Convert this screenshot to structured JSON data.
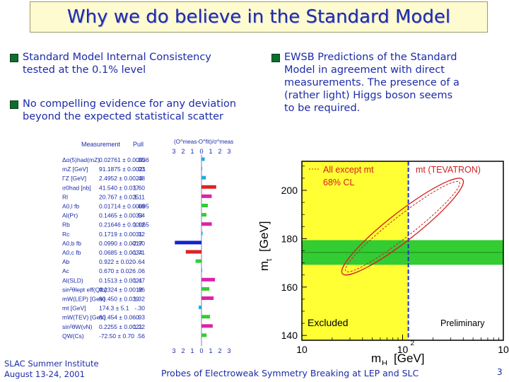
{
  "slide": {
    "title": "Why we do believe in the Standard Model",
    "left_bullets": [
      {
        "line1": "Standard Model Internal Consistency",
        "line2": "tested at the 0.1% level"
      },
      {
        "line1": "No compelling evidence for any deviation",
        "line2": "beyond the expected statistical scatter"
      }
    ],
    "right_bullet": {
      "lines": [
        "EWSB Predictions of the Standard",
        "Model in agreement with direct",
        "measurements. The presence of a",
        "(rather light) Higgs boson seems",
        "to be required."
      ]
    },
    "footer": {
      "left_line1": "SLAC Summer Institute",
      "left_line2": "August 13-24, 2001",
      "center": "Probes of Electroweak Symmetry Breaking at LEP and SLC",
      "page": "3"
    },
    "colors": {
      "title_bg": "#fffbd0",
      "text": "#1c2ba8",
      "bullet": "#0d6e2e"
    }
  },
  "pull_table": {
    "header_measurement": "Measurement",
    "header_pull": "Pull",
    "header_scale": "(O^meas-O^fit)/σ^meas",
    "scale_ticks": [
      "3",
      "2",
      "1",
      "0",
      "1",
      "2",
      "3"
    ],
    "rows": [
      {
        "name": "Δα(5)had(mZ)",
        "value": "0.02761 ± 0.00036",
        "pull": ".35",
        "pull_value": 0.35
      },
      {
        "name": "mZ [GeV]",
        "value": "91.1875 ± 0.0021",
        "pull": ".03",
        "pull_value": 0.03
      },
      {
        "name": "ΓZ [GeV]",
        "value": "2.4952 ± 0.0023",
        "pull": ".48",
        "pull_value": 0.48
      },
      {
        "name": "σ0had [nb]",
        "value": "41.540 ± 0.037",
        "pull": "1.60",
        "pull_value": 1.6
      },
      {
        "name": "Rl",
        "value": "20.767 ± 0.025",
        "pull": "1.11",
        "pull_value": 1.11
      },
      {
        "name": "A0,l fb",
        "value": "0.01714 ± 0.00095",
        "pull": ".69",
        "pull_value": 0.69
      },
      {
        "name": "Al(Pτ)",
        "value": "0.1465 ± 0.0033",
        "pull": ".54",
        "pull_value": 0.54
      },
      {
        "name": "Rb",
        "value": "0.21646 ± 0.00065",
        "pull": "1.12",
        "pull_value": 1.12
      },
      {
        "name": "Rc",
        "value": "0.1719 ± 0.0031",
        "pull": ".12",
        "pull_value": 0.12
      },
      {
        "name": "A0,b fb",
        "value": "0.0990 ± 0.0017",
        "pull": "-2.90",
        "pull_value": -2.9
      },
      {
        "name": "A0,c fb",
        "value": "0.0685 ± 0.0034",
        "pull": "-1.71",
        "pull_value": -1.71
      },
      {
        "name": "Ab",
        "value": "0.922 ± 0.020",
        "pull": "-.64",
        "pull_value": -0.64
      },
      {
        "name": "Ac",
        "value": "0.670 ± 0.026",
        "pull": ".06",
        "pull_value": 0.06
      },
      {
        "name": "Al(SLD)",
        "value": "0.1513 ± 0.0021",
        "pull": "1.47",
        "pull_value": 1.47
      },
      {
        "name": "sin²θlept eff(Qfb)",
        "value": "0.2324 ± 0.0012",
        "pull": ".86",
        "pull_value": 0.86
      },
      {
        "name": "mW(LEP) [GeV]",
        "value": "80.450 ± 0.039",
        "pull": "1.32",
        "pull_value": 1.32
      },
      {
        "name": "mt [GeV]",
        "value": "174.3 ± 5.1",
        "pull": "-.30",
        "pull_value": -0.3
      },
      {
        "name": "mW(TEV) [GeV]",
        "value": "80.454 ± 0.060",
        "pull": ".93",
        "pull_value": 0.93
      },
      {
        "name": "sin²θW(νN)",
        "value": "0.2255 ± 0.0021",
        "pull": "1.22",
        "pull_value": 1.22
      },
      {
        "name": "QW(Cs)",
        "value": "-72.50 ± 0.70",
        "pull": ".56",
        "pull_value": 0.56
      }
    ]
  },
  "mass_plot": {
    "ylabel_main": "m",
    "ylabel_sub": "t",
    "ylabel_unit": "[GeV]",
    "xlabel_main": "m",
    "xlabel_sub": "H",
    "xlabel_unit": "[GeV]",
    "yticks": [
      {
        "value": 140,
        "label": "140"
      },
      {
        "value": 160,
        "label": "160"
      },
      {
        "value": 180,
        "label": "180"
      },
      {
        "value": 200,
        "label": "200"
      }
    ],
    "xticks": [
      {
        "value": 10,
        "base": "10",
        "exp": ""
      },
      {
        "value": 100,
        "base": "10",
        "exp": "2"
      },
      {
        "value": 1000,
        "base": "10",
        "exp": "3"
      }
    ],
    "xlim": [
      10,
      1000
    ],
    "ylim": [
      138,
      212
    ],
    "excluded_mh_max": 114,
    "excluded_label": "Excluded",
    "preliminary_label": "Preliminary",
    "mt_band": {
      "center": 174.3,
      "error": 5.1
    },
    "mt_band_label": "mt (TEVATRON)",
    "contour_label_line1": "All except mt",
    "contour_label_line2": "68% CL",
    "contour": {
      "mh_center": 100,
      "mt_center": 185,
      "note": "68% CL ellipse"
    },
    "colors": {
      "excluded": "#ffff33",
      "band": "#33cc33",
      "contour": "#d02020",
      "vline": "#2233cc",
      "frame": "#000000"
    }
  }
}
